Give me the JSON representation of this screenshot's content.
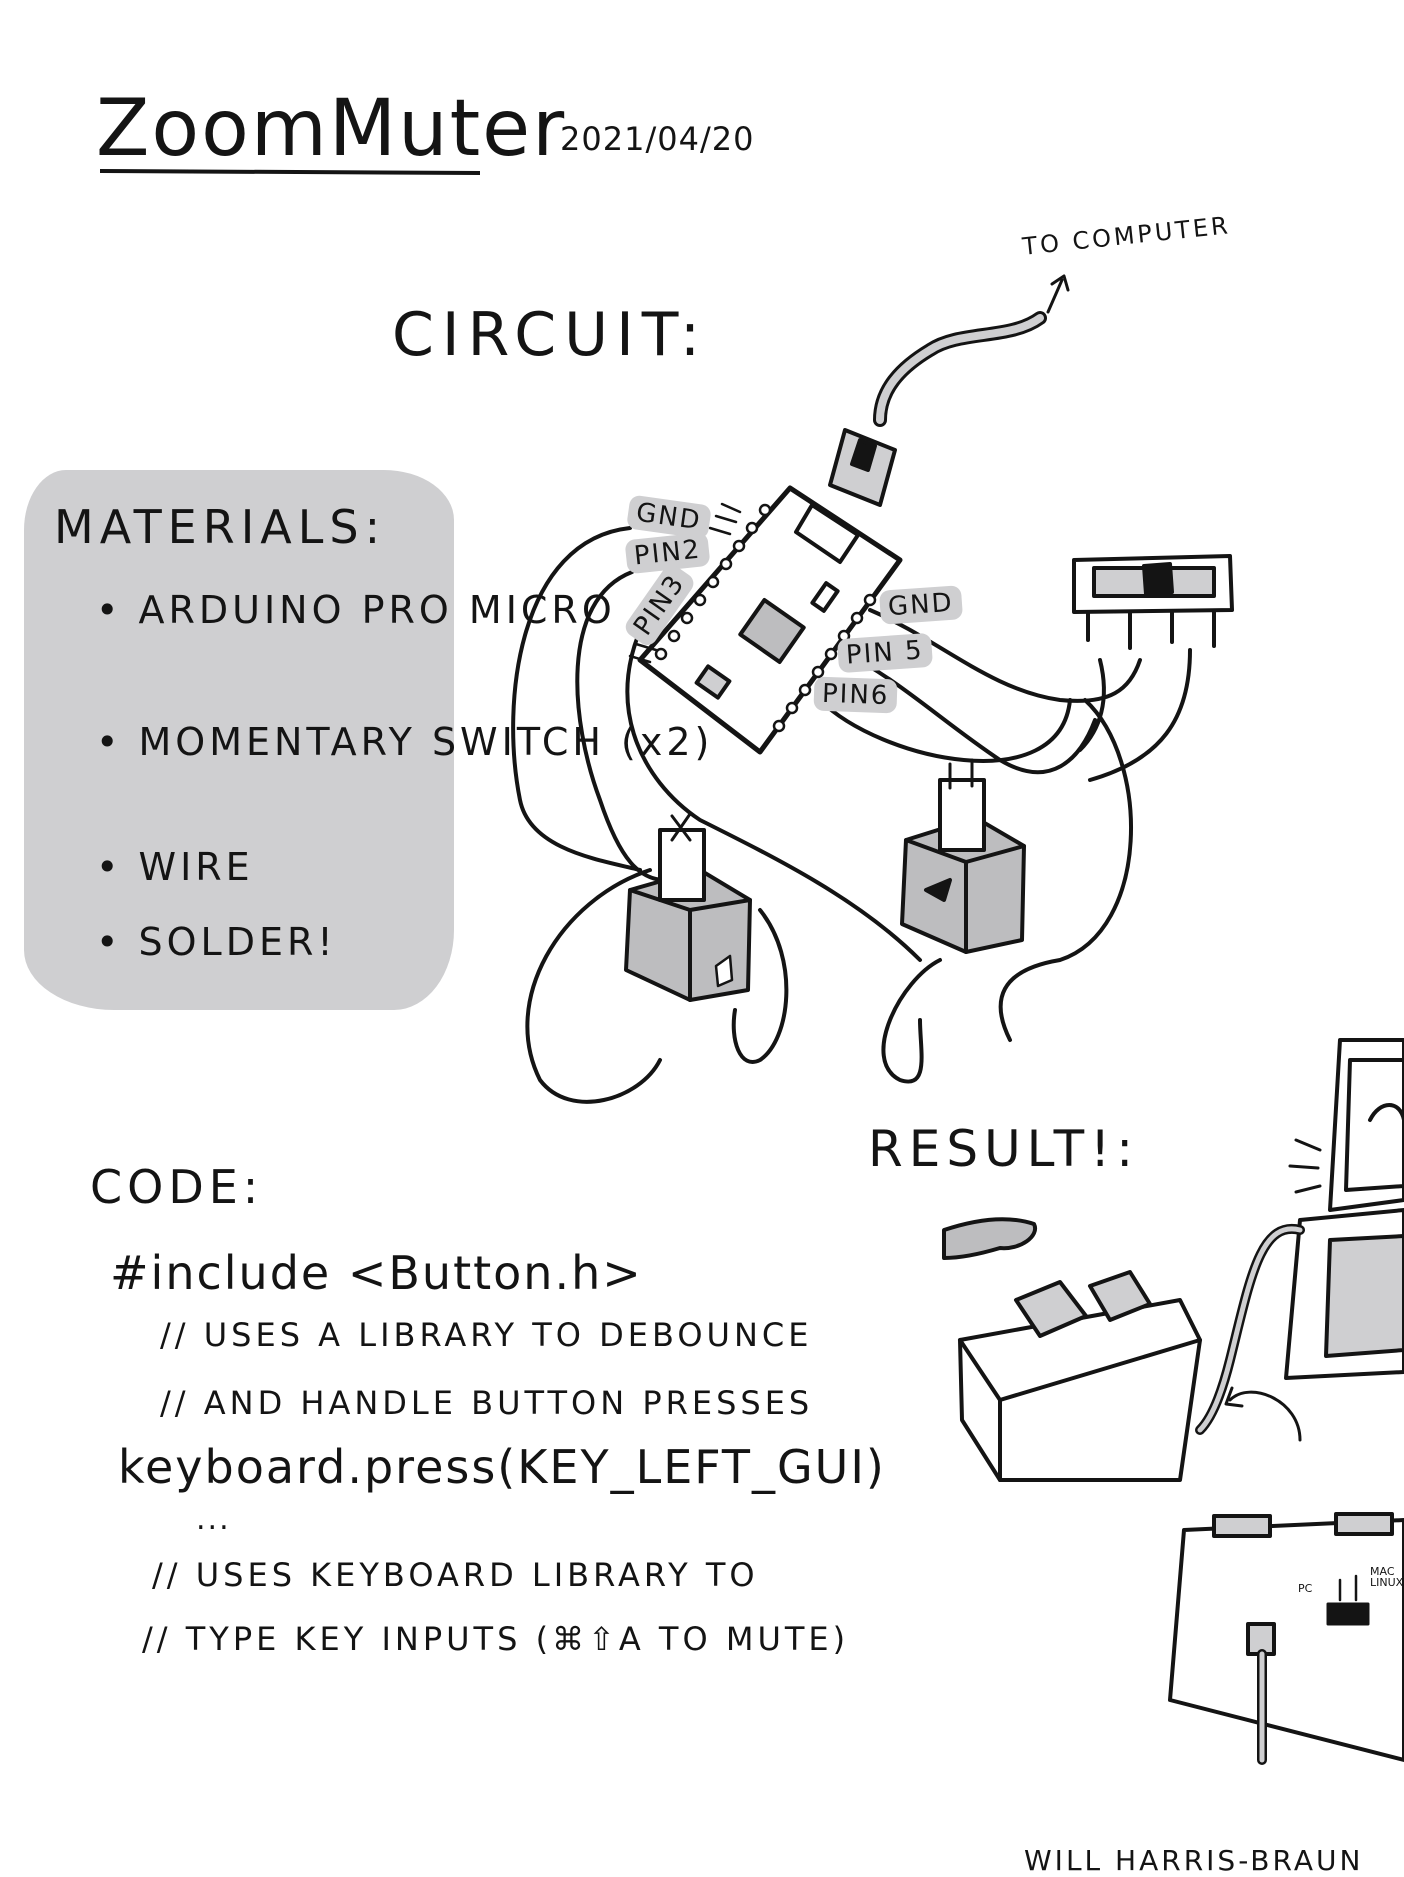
{
  "title": "ZoomMuter",
  "date": "2021/04/20",
  "circuit": {
    "heading": "CIRCUIT:",
    "usb_label": "TO COMPUTER",
    "pins_left": [
      "GND",
      "PIN2",
      "PIN3"
    ],
    "pins_right": [
      "GND",
      "PIN 5",
      "PIN6"
    ]
  },
  "materials": {
    "heading": "MATERIALS:",
    "items": [
      "ARDUINO PRO MICRO",
      "MOMENTARY SWITCH (x2)",
      "WIRE",
      "SOLDER!"
    ]
  },
  "result": {
    "heading": "RESULT!:",
    "switch_labels": [
      "PC",
      "MAC LINUX"
    ]
  },
  "code": {
    "heading": "CODE:",
    "lines": [
      "#include <Button.h>",
      "// USES A LIBRARY TO DEBOUNCE",
      "// AND HANDLE BUTTON PRESSES",
      "keyboard.press(KEY_LEFT_GUI)",
      "...",
      "// USES KEYBOARD LIBRARY TO",
      "// TYPE KEY INPUTS (⌘⇧A TO MUTE)"
    ]
  },
  "author": "WILL HARRIS-BRAUN",
  "colors": {
    "ink": "#141414",
    "highlight_gray": "#cfcfd1",
    "fill_gray": "#bdbdbf"
  }
}
